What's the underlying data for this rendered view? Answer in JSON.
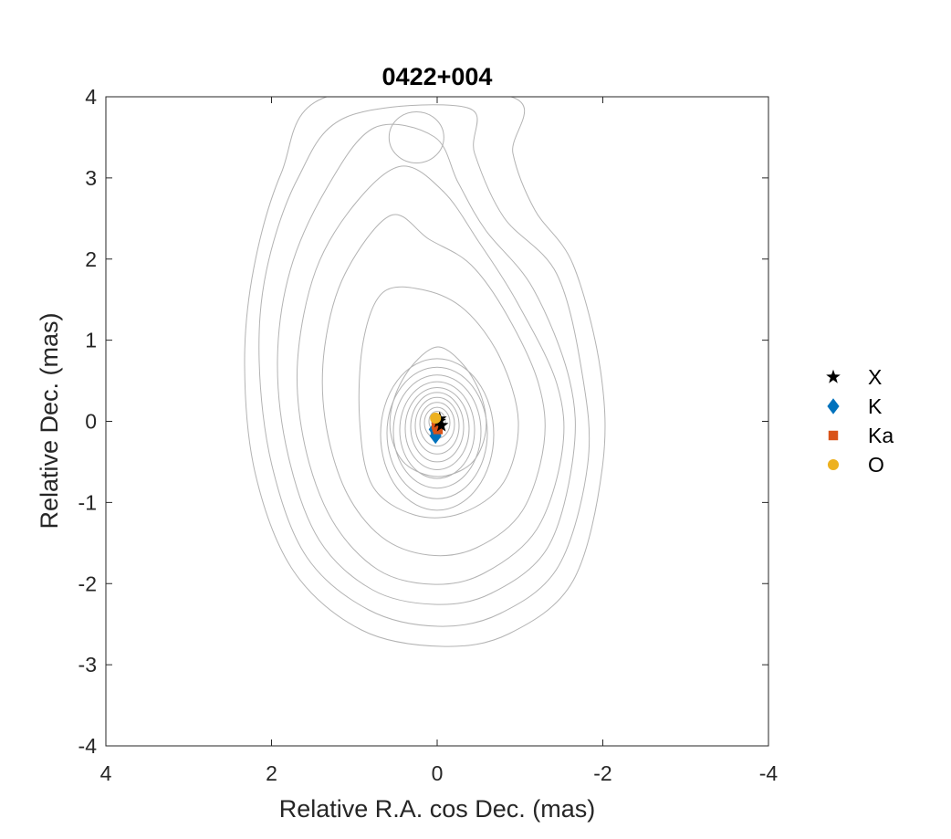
{
  "chart_data": {
    "type": "scatter",
    "title": "0422+004",
    "xlabel": "Relative R.A. cos Dec. (mas)",
    "ylabel": "Relative Dec. (mas)",
    "xlim": [
      4,
      -4
    ],
    "ylim": [
      -4,
      4
    ],
    "x_reversed": true,
    "xticks": [
      4,
      2,
      0,
      -2,
      -4
    ],
    "yticks": [
      -4,
      -3,
      -2,
      -1,
      0,
      1,
      2,
      3,
      4
    ],
    "xtick_labels": [
      "4",
      "2",
      "0",
      "-2",
      "-4"
    ],
    "ytick_labels": [
      "-4",
      "-3",
      "-2",
      "-1",
      "0",
      "1",
      "2",
      "3",
      "4"
    ],
    "grid": false,
    "legend_position": "right",
    "background": "contour map (grey contours)",
    "contour_color": "#b3b3b3",
    "series": [
      {
        "name": "X",
        "marker": "star",
        "color": "#000000",
        "points": [
          [
            -0.02,
            0.0
          ],
          [
            -0.05,
            -0.05
          ],
          [
            -0.03,
            0.03
          ]
        ]
      },
      {
        "name": "K",
        "marker": "diamond",
        "color": "#0072BD",
        "points": [
          [
            0.02,
            -0.18
          ],
          [
            0.03,
            -0.1
          ],
          [
            0.0,
            -0.02
          ],
          [
            0.01,
            -0.14
          ]
        ]
      },
      {
        "name": "Ka",
        "marker": "square",
        "color": "#D95319",
        "points": [
          [
            0.0,
            -0.07
          ],
          [
            0.01,
            -0.04
          ],
          [
            -0.01,
            -0.1
          ]
        ]
      },
      {
        "name": "O",
        "marker": "circle",
        "color": "#EDB120",
        "points": [
          [
            0.02,
            0.04
          ]
        ]
      }
    ]
  }
}
